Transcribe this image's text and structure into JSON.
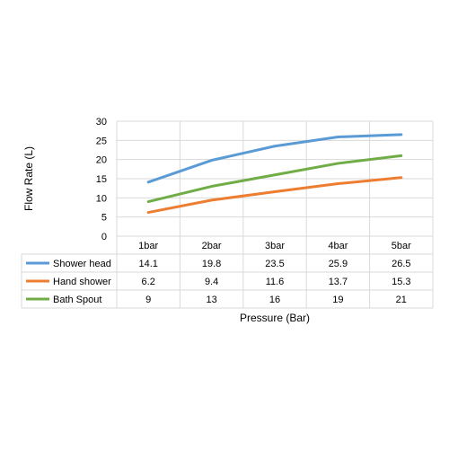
{
  "chart_data": {
    "type": "line",
    "title": "",
    "xlabel": "Pressure (Bar)",
    "ylabel": "Flow Rate (L)",
    "ylim": [
      0,
      30
    ],
    "yticks": [
      "0",
      "5",
      "10",
      "15",
      "20",
      "25",
      "30"
    ],
    "grid": true,
    "legend": "data-table-left",
    "categories": [
      "1bar",
      "2bar",
      "3bar",
      "4bar",
      "5bar"
    ],
    "series": [
      {
        "name": "Shower head",
        "color": "#5B9BD5",
        "values": [
          14.1,
          19.8,
          23.5,
          25.9,
          26.5
        ],
        "labels": [
          "14.1",
          "19.8",
          "23.5",
          "25.9",
          "26.5"
        ]
      },
      {
        "name": "Hand shower",
        "color": "#ED7D31",
        "values": [
          6.2,
          9.4,
          11.6,
          13.7,
          15.3
        ],
        "labels": [
          "6.2",
          "9.4",
          "11.6",
          "13.7",
          "15.3"
        ]
      },
      {
        "name": "Bath Spout",
        "color": "#70AD47",
        "values": [
          9,
          13,
          16,
          19,
          21
        ],
        "labels": [
          "9",
          "13",
          "16",
          "19",
          "21"
        ]
      }
    ]
  }
}
